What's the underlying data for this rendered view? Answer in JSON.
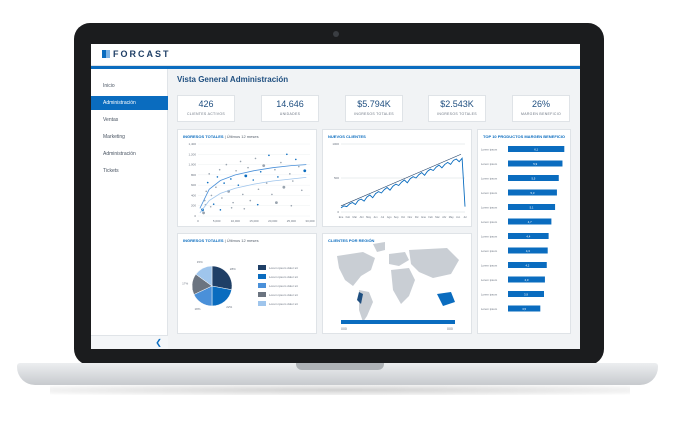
{
  "app": {
    "logo": "FORCAST",
    "title": "Vista General Administración"
  },
  "sidebar": {
    "items": [
      {
        "label": "Inicio",
        "active": false
      },
      {
        "label": "Administración",
        "active": true
      },
      {
        "label": "Ventas",
        "active": false
      },
      {
        "label": "Marketing",
        "active": false
      },
      {
        "label": "Administración",
        "active": false
      },
      {
        "label": "Tickets",
        "active": false
      }
    ],
    "collapse_icon": "chevron-left-icon"
  },
  "kpis": [
    {
      "value": "426",
      "label": "CLIENTES ACTIVOS"
    },
    {
      "value": "14.646",
      "label": "UNIDADES"
    },
    {
      "value": "$5.794K",
      "label": "INGRESOS TOTALES"
    },
    {
      "value": "$2.543K",
      "label": "INGRESOS TOTALES"
    },
    {
      "value": "26%",
      "label": "MARGEN BENEFICIO"
    }
  ],
  "cards": {
    "scatter": {
      "title": "INGRESOS TOTALES",
      "subtitle": " | Últimos 12 meses"
    },
    "line": {
      "title": "NUEVOS CLIENTES"
    },
    "bars": {
      "title": "TOP 10 PRODUCTOS MARGEN BENEFICIO"
    },
    "pie": {
      "title": "INGRESOS TOTALES",
      "subtitle": " | Últimos 12 meses"
    },
    "map": {
      "title": "CLIENTES POR REGIÓN"
    }
  },
  "chart_data": [
    {
      "type": "scatter",
      "yticks": [
        "1,400",
        "1,200",
        "1,000",
        "800",
        "600",
        "400",
        "200",
        "0"
      ],
      "xticks": [
        "0",
        "5,000",
        "10,000",
        "15,000",
        "20,000",
        "25,000",
        "30,000"
      ],
      "xlim": [
        0,
        30000
      ],
      "ylim": [
        0,
        1400
      ],
      "points": [
        [
          1200,
          120
        ],
        [
          1800,
          300
        ],
        [
          2200,
          480
        ],
        [
          2600,
          650
        ],
        [
          3000,
          820
        ],
        [
          3600,
          400
        ],
        [
          4200,
          230
        ],
        [
          1500,
          60
        ],
        [
          4800,
          560
        ],
        [
          5200,
          760
        ],
        [
          5800,
          900
        ],
        [
          6400,
          350
        ],
        [
          7000,
          640
        ],
        [
          7600,
          1000
        ],
        [
          8200,
          480
        ],
        [
          8800,
          720
        ],
        [
          9400,
          260
        ],
        [
          10200,
          880
        ],
        [
          10800,
          600
        ],
        [
          11400,
          1060
        ],
        [
          12000,
          420
        ],
        [
          12800,
          780
        ],
        [
          13400,
          940
        ],
        [
          14000,
          300
        ],
        [
          14800,
          700
        ],
        [
          15400,
          1120
        ],
        [
          16200,
          520
        ],
        [
          16800,
          860
        ],
        [
          17600,
          980
        ],
        [
          18400,
          640
        ],
        [
          19000,
          1180
        ],
        [
          19800,
          420
        ],
        [
          20600,
          900
        ],
        [
          21400,
          760
        ],
        [
          22200,
          1040
        ],
        [
          23000,
          560
        ],
        [
          23800,
          1200
        ],
        [
          24600,
          820
        ],
        [
          25400,
          680
        ],
        [
          26200,
          1100
        ],
        [
          27000,
          960
        ],
        [
          27800,
          500
        ],
        [
          28600,
          880
        ],
        [
          3400,
          180
        ],
        [
          2000,
          220
        ],
        [
          6000,
          120
        ],
        [
          9000,
          160
        ],
        [
          12400,
          140
        ],
        [
          16000,
          220
        ],
        [
          21000,
          260
        ],
        [
          25000,
          200
        ]
      ],
      "trend": [
        [
          500,
          150
        ],
        [
          3000,
          520
        ],
        [
          6000,
          690
        ],
        [
          10000,
          800
        ],
        [
          15000,
          880
        ],
        [
          20000,
          940
        ],
        [
          25000,
          980
        ],
        [
          29000,
          1000
        ]
      ],
      "trend_low": [
        [
          500,
          60
        ],
        [
          3000,
          300
        ],
        [
          6000,
          440
        ],
        [
          10000,
          540
        ],
        [
          15000,
          620
        ],
        [
          20000,
          680
        ],
        [
          25000,
          720
        ],
        [
          29000,
          750
        ]
      ]
    },
    {
      "type": "line",
      "yticks": [
        "1000",
        "500",
        "0"
      ],
      "ylim": [
        0,
        1000
      ],
      "xticks": [
        "Ene",
        "Feb",
        "Mar",
        "Abr",
        "May",
        "Jun",
        "Jul",
        "Ago",
        "Sep",
        "Oct",
        "Nov",
        "Dic",
        "Ene",
        "Feb",
        "Mar",
        "Abr",
        "May",
        "Jun",
        "Jul"
      ],
      "values": [
        60,
        90,
        80,
        120,
        140,
        110,
        170,
        190,
        160,
        220,
        250,
        210,
        270,
        300,
        280,
        330,
        360,
        320,
        380,
        410,
        390,
        440,
        470,
        430,
        490,
        520,
        500,
        550,
        580,
        540,
        600,
        630,
        610,
        660,
        690,
        650,
        700,
        730,
        700,
        760,
        780,
        740,
        790,
        80
      ]
    },
    {
      "type": "bar",
      "orientation": "horizontal",
      "categories": [
        "Lorem ipsum",
        "Lorem ipsum",
        "Lorem ipsum",
        "Lorem ipsum",
        "Lorem ipsum",
        "Lorem ipsum",
        "Lorem ipsum",
        "Lorem ipsum",
        "Lorem ipsum",
        "Lorem ipsum",
        "Lorem ipsum",
        "Lorem ipsum"
      ],
      "values": [
        6.1,
        5.9,
        5.5,
        5.3,
        5.1,
        4.7,
        4.4,
        4.3,
        4.2,
        4.0,
        3.9,
        3.5
      ],
      "labels": [
        "6,1",
        "5,9",
        "5,5",
        "5,3",
        "5,1",
        "4,7",
        "4,4",
        "4,3",
        "4,2",
        "4,0",
        "3,9",
        "3,5"
      ],
      "xlim": [
        0,
        6.5
      ],
      "color": "#0a6cbf"
    },
    {
      "type": "pie",
      "slices": [
        {
          "name": "Lorem ipsum dolor sit",
          "value": 28,
          "color": "#1f3f66"
        },
        {
          "name": "Lorem ipsum dolor sit",
          "value": 22,
          "color": "#0a6cbf"
        },
        {
          "name": "Lorem ipsum dolor sit",
          "value": 18,
          "color": "#4a90d9"
        },
        {
          "name": "Lorem ipsum dolor sit",
          "value": 17,
          "color": "#6b7480"
        },
        {
          "name": "Lorem ipsum dolor sit",
          "value": 15,
          "color": "#9fc5ec"
        }
      ],
      "slice_labels": [
        "28%",
        "22%",
        "18%",
        "17%",
        "15%"
      ]
    }
  ],
  "map": {
    "legend": [
      "000",
      "000"
    ]
  }
}
